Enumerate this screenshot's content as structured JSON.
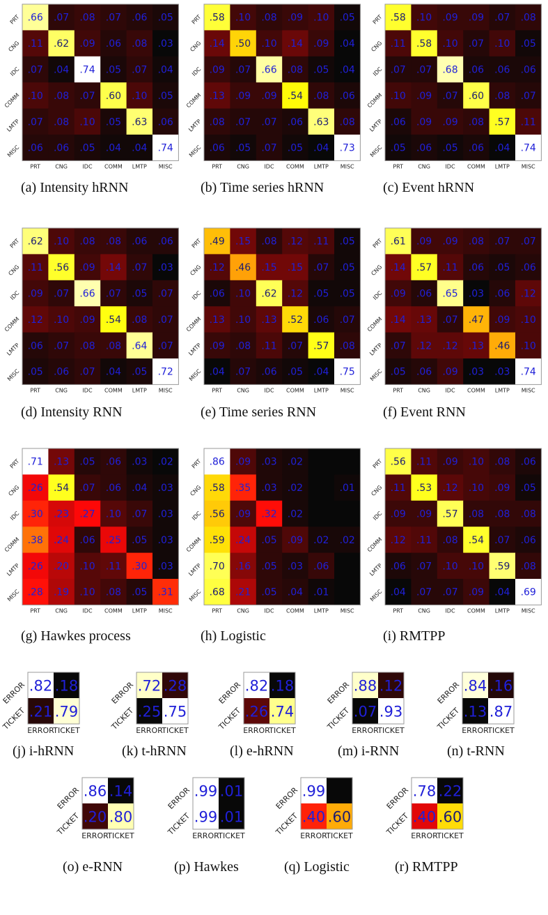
{
  "chart_data": [
    {
      "type": "heatmap",
      "caption": "(a)  Intensity hRNN",
      "labels": [
        "PRT",
        "CNG",
        "IDC",
        "COMM",
        "LMTP",
        "MISC"
      ],
      "values": [
        [
          ".66",
          ".07",
          ".08",
          ".07",
          ".06",
          ".05"
        ],
        [
          ".11",
          ".62",
          ".09",
          ".06",
          ".08",
          ".03"
        ],
        [
          ".07",
          ".04",
          ".74",
          ".05",
          ".07",
          ".04"
        ],
        [
          ".10",
          ".08",
          ".07",
          ".60",
          ".10",
          ".05"
        ],
        [
          ".07",
          ".08",
          ".10",
          ".05",
          ".63",
          ".06"
        ],
        [
          ".06",
          ".06",
          ".05",
          ".04",
          ".04",
          ".74"
        ]
      ]
    },
    {
      "type": "heatmap",
      "caption": "(b)  Time series hRNN",
      "labels": [
        "PRT",
        "CNG",
        "IDC",
        "COMM",
        "LMTP",
        "MISC"
      ],
      "values": [
        [
          ".58",
          ".10",
          ".08",
          ".09",
          ".10",
          ".05"
        ],
        [
          ".14",
          ".50",
          ".10",
          ".14",
          ".09",
          ".04"
        ],
        [
          ".09",
          ".07",
          ".66",
          ".08",
          ".05",
          ".04"
        ],
        [
          ".13",
          ".09",
          ".09",
          ".54",
          ".08",
          ".06"
        ],
        [
          ".08",
          ".07",
          ".07",
          ".06",
          ".63",
          ".08"
        ],
        [
          ".06",
          ".05",
          ".07",
          ".05",
          ".04",
          ".73"
        ]
      ]
    },
    {
      "type": "heatmap",
      "caption": "(c)  Event hRNN",
      "labels": [
        "PRT",
        "CNG",
        "IDC",
        "COMM",
        "LMTP",
        "MISC"
      ],
      "values": [
        [
          ".58",
          ".10",
          ".09",
          ".09",
          ".07",
          ".08"
        ],
        [
          ".11",
          ".58",
          ".10",
          ".07",
          ".10",
          ".05"
        ],
        [
          ".07",
          ".07",
          ".68",
          ".06",
          ".06",
          ".06"
        ],
        [
          ".10",
          ".09",
          ".07",
          ".60",
          ".08",
          ".07"
        ],
        [
          ".06",
          ".09",
          ".09",
          ".08",
          ".57",
          ".11"
        ],
        [
          ".05",
          ".06",
          ".05",
          ".06",
          ".04",
          ".74"
        ]
      ]
    },
    {
      "type": "heatmap",
      "caption": "(d)  Intensity RNN",
      "labels": [
        "PRT",
        "CNG",
        "IDC",
        "COMM",
        "LMTP",
        "MISC"
      ],
      "values": [
        [
          ".62",
          ".10",
          ".08",
          ".08",
          ".06",
          ".06"
        ],
        [
          ".11",
          ".56",
          ".09",
          ".14",
          ".07",
          ".03"
        ],
        [
          ".09",
          ".07",
          ".66",
          ".07",
          ".05",
          ".07"
        ],
        [
          ".12",
          ".10",
          ".09",
          ".54",
          ".08",
          ".07"
        ],
        [
          ".06",
          ".07",
          ".08",
          ".08",
          ".64",
          ".07"
        ],
        [
          ".05",
          ".06",
          ".07",
          ".04",
          ".05",
          ".72"
        ]
      ]
    },
    {
      "type": "heatmap",
      "caption": "(e)  Time series RNN",
      "labels": [
        "PRT",
        "CNG",
        "IDC",
        "COMM",
        "LMTP",
        "MISC"
      ],
      "values": [
        [
          ".49",
          ".15",
          ".08",
          ".12",
          ".11",
          ".05"
        ],
        [
          ".12",
          ".46",
          ".15",
          ".15",
          ".07",
          ".05"
        ],
        [
          ".06",
          ".10",
          ".62",
          ".12",
          ".05",
          ".05"
        ],
        [
          ".13",
          ".10",
          ".13",
          ".52",
          ".06",
          ".07"
        ],
        [
          ".09",
          ".08",
          ".11",
          ".07",
          ".57",
          ".08"
        ],
        [
          ".04",
          ".07",
          ".06",
          ".05",
          ".04",
          ".75"
        ]
      ]
    },
    {
      "type": "heatmap",
      "caption": "(f)  Event RNN",
      "labels": [
        "PRT",
        "CNG",
        "IDC",
        "COMM",
        "LMTP",
        "MISC"
      ],
      "values": [
        [
          ".61",
          ".09",
          ".09",
          ".08",
          ".07",
          ".07"
        ],
        [
          ".14",
          ".57",
          ".11",
          ".06",
          ".05",
          ".06"
        ],
        [
          ".09",
          ".06",
          ".65",
          ".03",
          ".06",
          ".12"
        ],
        [
          ".14",
          ".13",
          ".07",
          ".47",
          ".09",
          ".10"
        ],
        [
          ".07",
          ".12",
          ".12",
          ".13",
          ".46",
          ".10"
        ],
        [
          ".05",
          ".06",
          ".09",
          ".03",
          ".03",
          ".74"
        ]
      ]
    },
    {
      "type": "heatmap",
      "caption": "(g)  Hawkes process",
      "labels": [
        "PRT",
        "CNG",
        "IDC",
        "COMM",
        "LMTP",
        "MISC"
      ],
      "values": [
        [
          ".71",
          ".13",
          ".05",
          ".06",
          ".03",
          ".02"
        ],
        [
          ".26",
          ".54",
          ".07",
          ".06",
          ".04",
          ".03"
        ],
        [
          ".30",
          ".23",
          ".27",
          ".10",
          ".07",
          ".03"
        ],
        [
          ".38",
          ".24",
          ".06",
          ".25",
          ".05",
          ".03"
        ],
        [
          ".26",
          ".20",
          ".10",
          ".11",
          ".30",
          ".03"
        ],
        [
          ".28",
          ".19",
          ".10",
          ".08",
          ".05",
          ".31"
        ]
      ]
    },
    {
      "type": "heatmap",
      "caption": "(h)  Logistic",
      "labels": [
        "PRT",
        "CNG",
        "IDC",
        "COMM",
        "LMTP",
        "MISC"
      ],
      "values": [
        [
          ".86",
          ".09",
          ".03",
          ".02",
          "",
          ""
        ],
        [
          ".58",
          ".35",
          ".03",
          ".02",
          "",
          ".01"
        ],
        [
          ".56",
          ".09",
          ".32",
          ".02",
          "",
          ""
        ],
        [
          ".59",
          ".24",
          ".05",
          ".09",
          ".02",
          ".02"
        ],
        [
          ".70",
          ".16",
          ".05",
          ".03",
          ".06",
          ""
        ],
        [
          ".68",
          ".21",
          ".05",
          ".04",
          ".01",
          ""
        ]
      ]
    },
    {
      "type": "heatmap",
      "caption": "(i)  RMTPP",
      "labels": [
        "PRT",
        "CNG",
        "IDC",
        "COMM",
        "LMTP",
        "MISC"
      ],
      "values": [
        [
          ".56",
          ".11",
          ".09",
          ".10",
          ".08",
          ".06"
        ],
        [
          ".11",
          ".53",
          ".12",
          ".10",
          ".09",
          ".05"
        ],
        [
          ".09",
          ".09",
          ".57",
          ".08",
          ".08",
          ".08"
        ],
        [
          ".12",
          ".11",
          ".08",
          ".54",
          ".07",
          ".06"
        ],
        [
          ".06",
          ".07",
          ".10",
          ".10",
          ".59",
          ".08"
        ],
        [
          ".04",
          ".07",
          ".07",
          ".09",
          ".04",
          ".69"
        ]
      ]
    },
    {
      "type": "heatmap",
      "caption": "(j)  i-hRNN",
      "labels": [
        "ERROR",
        "TICKET"
      ],
      "values": [
        [
          ".82",
          ".18"
        ],
        [
          ".21",
          ".79"
        ]
      ]
    },
    {
      "type": "heatmap",
      "caption": "(k)  t-hRNN",
      "labels": [
        "ERROR",
        "TICKET"
      ],
      "values": [
        [
          ".72",
          ".28"
        ],
        [
          ".25",
          ".75"
        ]
      ]
    },
    {
      "type": "heatmap",
      "caption": "(l)  e-hRNN",
      "labels": [
        "ERROR",
        "TICKET"
      ],
      "values": [
        [
          ".82",
          ".18"
        ],
        [
          ".26",
          ".74"
        ]
      ]
    },
    {
      "type": "heatmap",
      "caption": "(m)  i-RNN",
      "labels": [
        "ERROR",
        "TICKET"
      ],
      "values": [
        [
          ".88",
          ".12"
        ],
        [
          ".07",
          ".93"
        ]
      ]
    },
    {
      "type": "heatmap",
      "caption": "(n)  t-RNN",
      "labels": [
        "ERROR",
        "TICKET"
      ],
      "values": [
        [
          ".84",
          ".16"
        ],
        [
          ".13",
          ".87"
        ]
      ]
    },
    {
      "type": "heatmap",
      "caption": "(o)  e-RNN",
      "labels": [
        "ERROR",
        "TICKET"
      ],
      "values": [
        [
          ".86",
          ".14"
        ],
        [
          ".20",
          ".80"
        ]
      ]
    },
    {
      "type": "heatmap",
      "caption": "(p)  Hawkes",
      "labels": [
        "ERROR",
        "TICKET"
      ],
      "values": [
        [
          ".99",
          ".01"
        ],
        [
          ".99",
          ".01"
        ]
      ]
    },
    {
      "type": "heatmap",
      "caption": "(q)  Logistic",
      "labels": [
        "ERROR",
        "TICKET"
      ],
      "values": [
        [
          ".99",
          ""
        ],
        [
          ".40",
          ".60"
        ]
      ]
    },
    {
      "type": "heatmap",
      "caption": "(r)  RMTPP",
      "labels": [
        "ERROR",
        "TICKET"
      ],
      "values": [
        [
          ".78",
          ".22"
        ],
        [
          ".40",
          ".60"
        ]
      ]
    }
  ],
  "colors": {
    "colormap": "hot",
    "cell_text": "#2020d8",
    "cell_text_on_yellow": "#1c1c70"
  }
}
